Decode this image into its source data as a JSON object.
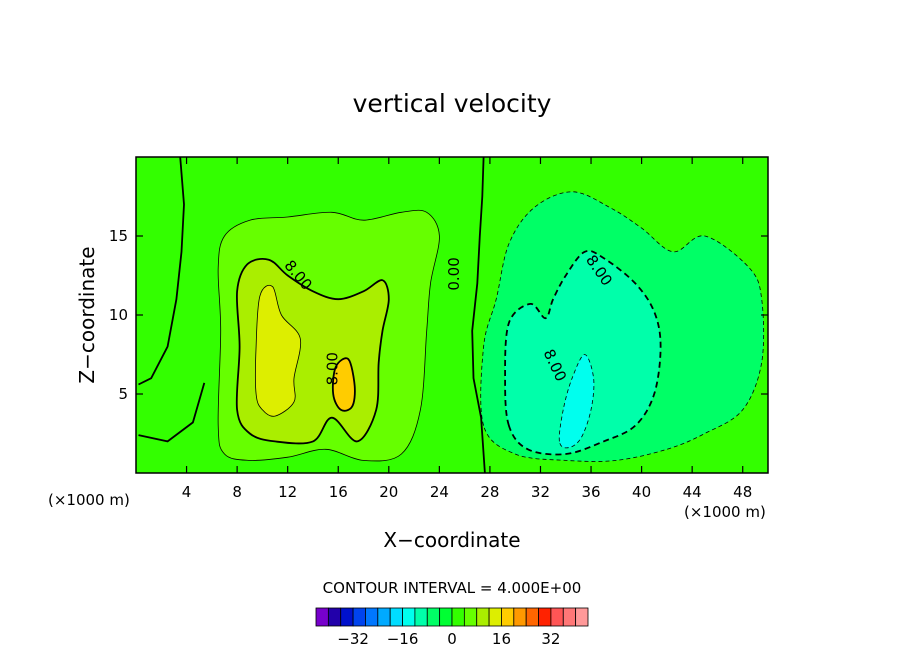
{
  "chart_data": {
    "type": "heatmap",
    "title": "vertical velocity",
    "xlabel": "X−coordinate",
    "ylabel": "Z−coordinate",
    "x_unit": "(×1000 m)",
    "z_unit": "(×1000 m)",
    "xlim": [
      0,
      50
    ],
    "ylim": [
      0,
      20
    ],
    "x_ticks": [
      4,
      8,
      12,
      16,
      20,
      24,
      28,
      32,
      36,
      40,
      44,
      48
    ],
    "y_ticks": [
      5,
      10,
      15
    ],
    "contour_interval_label": "CONTOUR INTERVAL = 4.000E+00",
    "contour_labels": [
      {
        "text": "8.00",
        "x": 12.8,
        "z": 12.5,
        "rotate": 50
      },
      {
        "text": "0.00",
        "x": 25.2,
        "z": 12.6,
        "rotate": -90
      },
      {
        "text": "8.00",
        "x": 36.6,
        "z": 12.8,
        "rotate": 55
      },
      {
        "text": "8.00",
        "x": 15.6,
        "z": 6.6,
        "rotate": -90
      },
      {
        "text": "8.00",
        "x": 33.1,
        "z": 6.8,
        "rotate": 65
      }
    ],
    "updraft_cell": {
      "center_x": 14.5,
      "center_z": 8.0,
      "levels": [
        {
          "value": 4,
          "color": "#66ff00",
          "outline": [
            [
              6.5,
              3
            ],
            [
              6.7,
              9
            ],
            [
              6.5,
              13
            ],
            [
              7,
              15
            ],
            [
              9,
              16
            ],
            [
              12,
              16.2
            ],
            [
              15.5,
              16.5
            ],
            [
              18,
              16
            ],
            [
              21,
              16.5
            ],
            [
              23,
              16.5
            ],
            [
              24,
              15
            ],
            [
              23.3,
              12
            ],
            [
              23,
              9
            ],
            [
              22.5,
              4
            ],
            [
              21,
              1.2
            ],
            [
              18,
              0.8
            ],
            [
              15,
              1.5
            ],
            [
              12,
              1
            ],
            [
              9,
              0.8
            ],
            [
              7,
              1.2
            ]
          ]
        },
        {
          "value": 8,
          "color": "#aaee00",
          "outline": [
            [
              8,
              4
            ],
            [
              8.2,
              8
            ],
            [
              8,
              11.5
            ],
            [
              8.8,
              13.2
            ],
            [
              10.5,
              13.5
            ],
            [
              12,
              12.5
            ],
            [
              14,
              11.5
            ],
            [
              16,
              11
            ],
            [
              18,
              11.5
            ],
            [
              19.5,
              12.2
            ],
            [
              20,
              11
            ],
            [
              19.5,
              9
            ],
            [
              19.2,
              7
            ],
            [
              19,
              4
            ],
            [
              17.5,
              2
            ],
            [
              15.5,
              3.5
            ],
            [
              14,
              2
            ],
            [
              11,
              2
            ],
            [
              9,
              2.5
            ]
          ]
        },
        {
          "value": 12,
          "color": "#ddee00",
          "outline": [
            [
              9.5,
              5
            ],
            [
              9.5,
              8
            ],
            [
              9.8,
              11.2
            ],
            [
              10.8,
              11.8
            ],
            [
              11.5,
              10
            ],
            [
              13,
              8.5
            ],
            [
              12.5,
              6
            ],
            [
              12.5,
              4.5
            ],
            [
              11,
              3.6
            ],
            [
              10,
              4
            ]
          ]
        },
        {
          "value": 16,
          "color": "#ffcc00",
          "outline": [
            [
              15.6,
              5
            ],
            [
              15.8,
              6.7
            ],
            [
              16.8,
              7.2
            ],
            [
              17.3,
              5.5
            ],
            [
              17.1,
              4.2
            ],
            [
              16.2,
              4
            ]
          ]
        }
      ]
    },
    "downdraft_cell": {
      "center_x": 35,
      "center_z": 7.0,
      "levels": [
        {
          "value": -4,
          "color": "#00ff66",
          "outline": [
            [
              27.5,
              3
            ],
            [
              27.5,
              8
            ],
            [
              28.5,
              11
            ],
            [
              29.5,
              14.5
            ],
            [
              31.5,
              16.8
            ],
            [
              34.5,
              17.8
            ],
            [
              37.5,
              16.8
            ],
            [
              40,
              15.5
            ],
            [
              42.5,
              14
            ],
            [
              45,
              15
            ],
            [
              48.5,
              13
            ],
            [
              49.5,
              11
            ],
            [
              49.5,
              7
            ],
            [
              48,
              4
            ],
            [
              45,
              2.5
            ],
            [
              42,
              1.5
            ],
            [
              38,
              0.8
            ],
            [
              34,
              0.8
            ],
            [
              30,
              1.2
            ]
          ]
        },
        {
          "value": -8,
          "color": "#00ffaa",
          "outline": [
            [
              29.5,
              3
            ],
            [
              29.2,
              6
            ],
            [
              29.5,
              9.5
            ],
            [
              31.2,
              10.7
            ],
            [
              32.4,
              9.8
            ],
            [
              33,
              11
            ],
            [
              34,
              12.5
            ],
            [
              35.5,
              14
            ],
            [
              37,
              13.6
            ],
            [
              39.5,
              12
            ],
            [
              41,
              10.2
            ],
            [
              41.5,
              8
            ],
            [
              41,
              5
            ],
            [
              39.5,
              3
            ],
            [
              37,
              2
            ],
            [
              34,
              1.2
            ],
            [
              31,
              1.5
            ]
          ]
        },
        {
          "value": -12,
          "color": "#00ffee",
          "outline": [
            [
              33.5,
              2
            ],
            [
              33.8,
              4
            ],
            [
              34.5,
              6
            ],
            [
              35.5,
              7.5
            ],
            [
              36.2,
              6
            ],
            [
              36,
              4
            ],
            [
              35.2,
              2.2
            ],
            [
              34.2,
              1.6
            ]
          ]
        }
      ]
    },
    "colorbar": {
      "colors": [
        "#7700cc",
        "#2200aa",
        "#0011cc",
        "#0044ee",
        "#0077ff",
        "#00aaff",
        "#00ddff",
        "#00ffee",
        "#00ffaa",
        "#00ff66",
        "#00ff33",
        "#33ff00",
        "#66ff00",
        "#aaee00",
        "#ddee00",
        "#ffcc00",
        "#ff9900",
        "#ff6600",
        "#ff2200",
        "#ff5555",
        "#ff7777",
        "#ff9999"
      ],
      "tick_labels": [
        "−32",
        "−16",
        "0",
        "16",
        "32"
      ],
      "tick_values": [
        -32,
        -16,
        0,
        16,
        32
      ],
      "range": [
        -44,
        44
      ]
    },
    "background_color": "#33ff00",
    "grid": false,
    "legend": "bottom-center colorbar"
  }
}
